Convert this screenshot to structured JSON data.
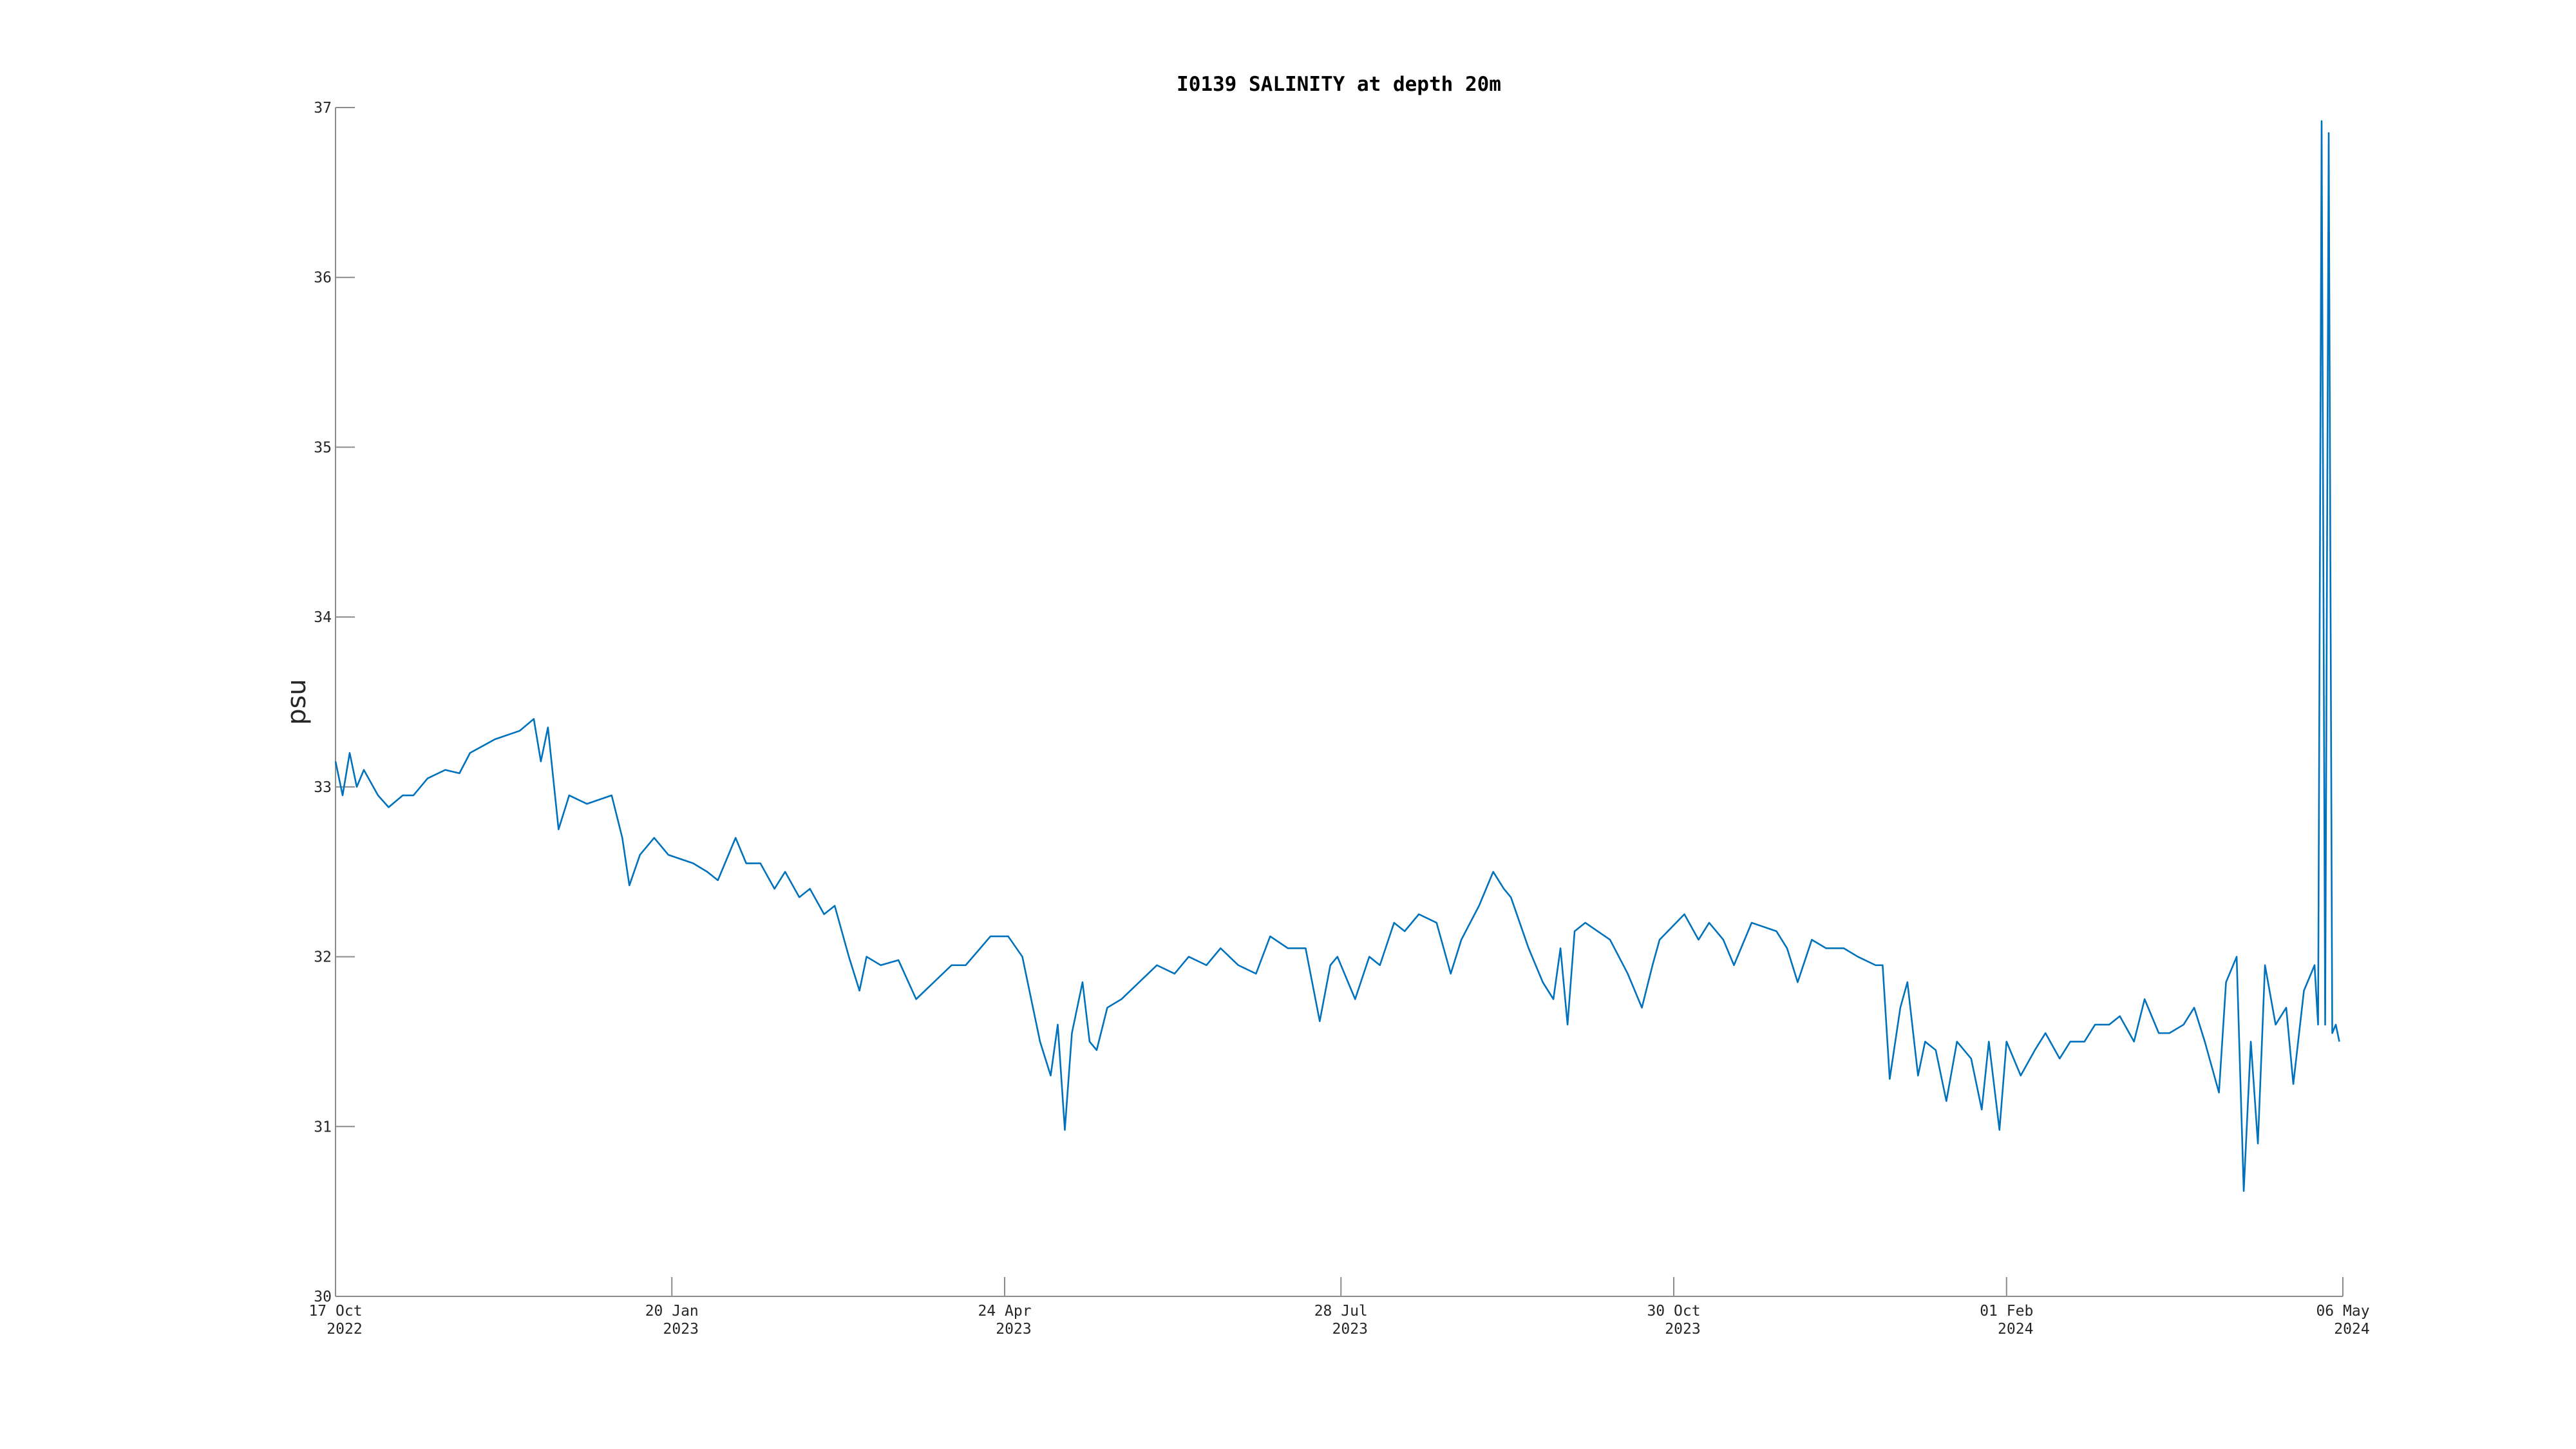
{
  "chart_data": {
    "type": "line",
    "title": "I0139 SALINITY at depth 20m",
    "ylabel": "psu",
    "color": "#0072bd",
    "xlim": [
      "2022-10-17",
      "2024-05-06"
    ],
    "xticks": [
      {
        "value": "2022-10-17",
        "label": [
          "17 Oct",
          "2022"
        ]
      },
      {
        "value": "2023-01-20",
        "label": [
          "20 Jan",
          "2023"
        ]
      },
      {
        "value": "2023-04-24",
        "label": [
          "24 Apr",
          "2023"
        ]
      },
      {
        "value": "2023-07-28",
        "label": [
          "28 Jul",
          "2023"
        ]
      },
      {
        "value": "2023-10-30",
        "label": [
          "30 Oct",
          "2023"
        ]
      },
      {
        "value": "2024-02-01",
        "label": [
          "01 Feb",
          "2024"
        ]
      },
      {
        "value": "2024-05-06",
        "label": [
          "06 May",
          "2024"
        ]
      }
    ],
    "ylim": [
      30,
      37
    ],
    "yticks": [
      30,
      31,
      32,
      33,
      34,
      35,
      36,
      37
    ],
    "x": [
      "2022-10-17",
      "2022-10-19",
      "2022-10-21",
      "2022-10-23",
      "2022-10-25",
      "2022-10-29",
      "2022-11-01",
      "2022-11-05",
      "2022-11-08",
      "2022-11-12",
      "2022-11-17",
      "2022-11-21",
      "2022-11-24",
      "2022-12-01",
      "2022-12-08",
      "2022-12-12",
      "2022-12-14",
      "2022-12-16",
      "2022-12-19",
      "2022-12-22",
      "2022-12-27",
      "2023-01-03",
      "2023-01-06",
      "2023-01-08",
      "2023-01-11",
      "2023-01-15",
      "2023-01-19",
      "2023-01-26",
      "2023-01-30",
      "2023-02-02",
      "2023-02-07",
      "2023-02-10",
      "2023-02-14",
      "2023-02-18",
      "2023-02-21",
      "2023-02-25",
      "2023-02-28",
      "2023-03-04",
      "2023-03-07",
      "2023-03-11",
      "2023-03-14",
      "2023-03-16",
      "2023-03-20",
      "2023-03-25",
      "2023-03-30",
      "2023-04-04",
      "2023-04-09",
      "2023-04-13",
      "2023-04-20",
      "2023-04-25",
      "2023-04-29",
      "2023-05-02",
      "2023-05-04",
      "2023-05-07",
      "2023-05-09",
      "2023-05-11",
      "2023-05-13",
      "2023-05-16",
      "2023-05-18",
      "2023-05-20",
      "2023-05-23",
      "2023-05-27",
      "2023-06-01",
      "2023-06-06",
      "2023-06-11",
      "2023-06-15",
      "2023-06-20",
      "2023-06-24",
      "2023-06-29",
      "2023-07-04",
      "2023-07-08",
      "2023-07-13",
      "2023-07-18",
      "2023-07-22",
      "2023-07-25",
      "2023-07-27",
      "2023-08-01",
      "2023-08-05",
      "2023-08-08",
      "2023-08-12",
      "2023-08-15",
      "2023-08-19",
      "2023-08-24",
      "2023-08-28",
      "2023-08-31",
      "2023-09-05",
      "2023-09-09",
      "2023-09-12",
      "2023-09-14",
      "2023-09-19",
      "2023-09-23",
      "2023-09-26",
      "2023-09-28",
      "2023-09-30",
      "2023-10-02",
      "2023-10-05",
      "2023-10-12",
      "2023-10-17",
      "2023-10-21",
      "2023-10-24",
      "2023-10-26",
      "2023-11-02",
      "2023-11-06",
      "2023-11-09",
      "2023-11-13",
      "2023-11-16",
      "2023-11-21",
      "2023-11-28",
      "2023-12-01",
      "2023-12-04",
      "2023-12-08",
      "2023-12-12",
      "2023-12-17",
      "2023-12-21",
      "2023-12-26",
      "2023-12-28",
      "2023-12-30",
      "2024-01-02",
      "2024-01-04",
      "2024-01-07",
      "2024-01-09",
      "2024-01-12",
      "2024-01-15",
      "2024-01-18",
      "2024-01-22",
      "2024-01-25",
      "2024-01-27",
      "2024-01-30",
      "2024-02-01",
      "2024-02-05",
      "2024-02-09",
      "2024-02-12",
      "2024-02-16",
      "2024-02-19",
      "2024-02-23",
      "2024-02-26",
      "2024-03-01",
      "2024-03-04",
      "2024-03-08",
      "2024-03-11",
      "2024-03-15",
      "2024-03-18",
      "2024-03-22",
      "2024-03-25",
      "2024-03-28",
      "2024-04-01",
      "2024-04-03",
      "2024-04-06",
      "2024-04-08",
      "2024-04-10",
      "2024-04-12",
      "2024-04-14",
      "2024-04-17",
      "2024-04-20",
      "2024-04-22",
      "2024-04-25",
      "2024-04-28",
      "2024-04-29",
      "2024-04-30",
      "2024-05-01",
      "2024-05-02",
      "2024-05-03",
      "2024-05-04",
      "2024-05-05"
    ],
    "values": [
      33.15,
      32.95,
      33.2,
      33.0,
      33.1,
      32.95,
      32.88,
      32.95,
      32.95,
      33.05,
      33.1,
      33.08,
      33.2,
      33.28,
      33.33,
      33.4,
      33.15,
      33.35,
      32.75,
      32.95,
      32.9,
      32.95,
      32.7,
      32.42,
      32.6,
      32.7,
      32.6,
      32.55,
      32.5,
      32.45,
      32.7,
      32.55,
      32.55,
      32.4,
      32.5,
      32.35,
      32.4,
      32.25,
      32.3,
      32.0,
      31.8,
      32.0,
      31.95,
      31.98,
      31.75,
      31.85,
      31.95,
      31.95,
      32.12,
      32.12,
      32.0,
      31.7,
      31.5,
      31.3,
      31.6,
      30.98,
      31.55,
      31.85,
      31.5,
      31.45,
      31.7,
      31.75,
      31.85,
      31.95,
      31.9,
      32.0,
      31.95,
      32.05,
      31.95,
      31.9,
      32.12,
      32.05,
      32.05,
      31.62,
      31.95,
      32.0,
      31.75,
      32.0,
      31.95,
      32.2,
      32.15,
      32.25,
      32.2,
      31.9,
      32.1,
      32.3,
      32.5,
      32.4,
      32.35,
      32.05,
      31.85,
      31.75,
      32.05,
      31.6,
      32.15,
      32.2,
      32.1,
      31.9,
      31.7,
      31.95,
      32.1,
      32.25,
      32.1,
      32.2,
      32.1,
      31.95,
      32.2,
      32.15,
      32.05,
      31.85,
      32.1,
      32.05,
      32.05,
      32.0,
      31.95,
      31.95,
      31.28,
      31.7,
      31.85,
      31.3,
      31.5,
      31.45,
      31.15,
      31.5,
      31.4,
      31.1,
      31.5,
      30.98,
      31.5,
      31.3,
      31.45,
      31.55,
      31.4,
      31.5,
      31.5,
      31.6,
      31.6,
      31.65,
      31.5,
      31.75,
      31.55,
      31.55,
      31.6,
      31.7,
      31.5,
      31.2,
      31.85,
      32.0,
      30.62,
      31.5,
      30.9,
      31.95,
      31.6,
      31.7,
      31.25,
      31.8,
      31.95,
      31.6,
      36.92,
      31.6,
      36.85,
      31.55,
      31.6,
      31.5
    ]
  }
}
